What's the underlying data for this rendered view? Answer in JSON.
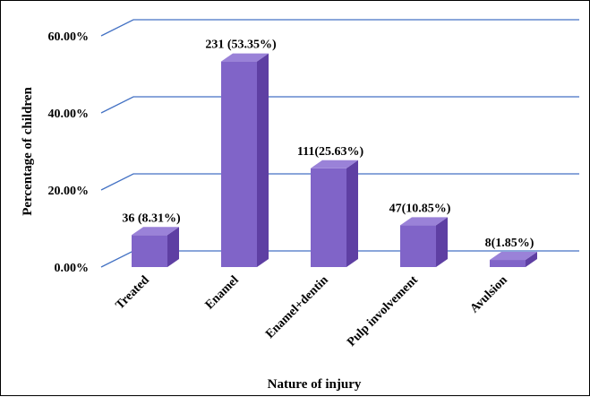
{
  "chart_data": {
    "type": "bar",
    "style": "3d-column",
    "categories": [
      "Treated",
      "Enamel",
      "Enamel+dentin",
      "Pulp involvement",
      "Avulsion"
    ],
    "values": [
      8.31,
      53.35,
      25.63,
      10.85,
      1.85
    ],
    "data_labels": [
      "36 (8.31%)",
      "231 (53.35%)",
      "111(25.63%)",
      "47(10.85%)",
      "8(1.85%)"
    ],
    "xlabel": "Nature of injury",
    "ylabel": "Percentage of children",
    "ylim": [
      0,
      60
    ],
    "y_ticks": [
      0,
      20,
      40,
      60
    ],
    "y_tick_labels": [
      "0.00%",
      "20.00%",
      "40.00%",
      "60.00%"
    ],
    "grid": true,
    "legend": "none",
    "colors": {
      "bar_front": "#8064C8",
      "bar_side": "#5E3FA3",
      "bar_top": "#9A82D8",
      "gridline": "#4472C4"
    }
  }
}
